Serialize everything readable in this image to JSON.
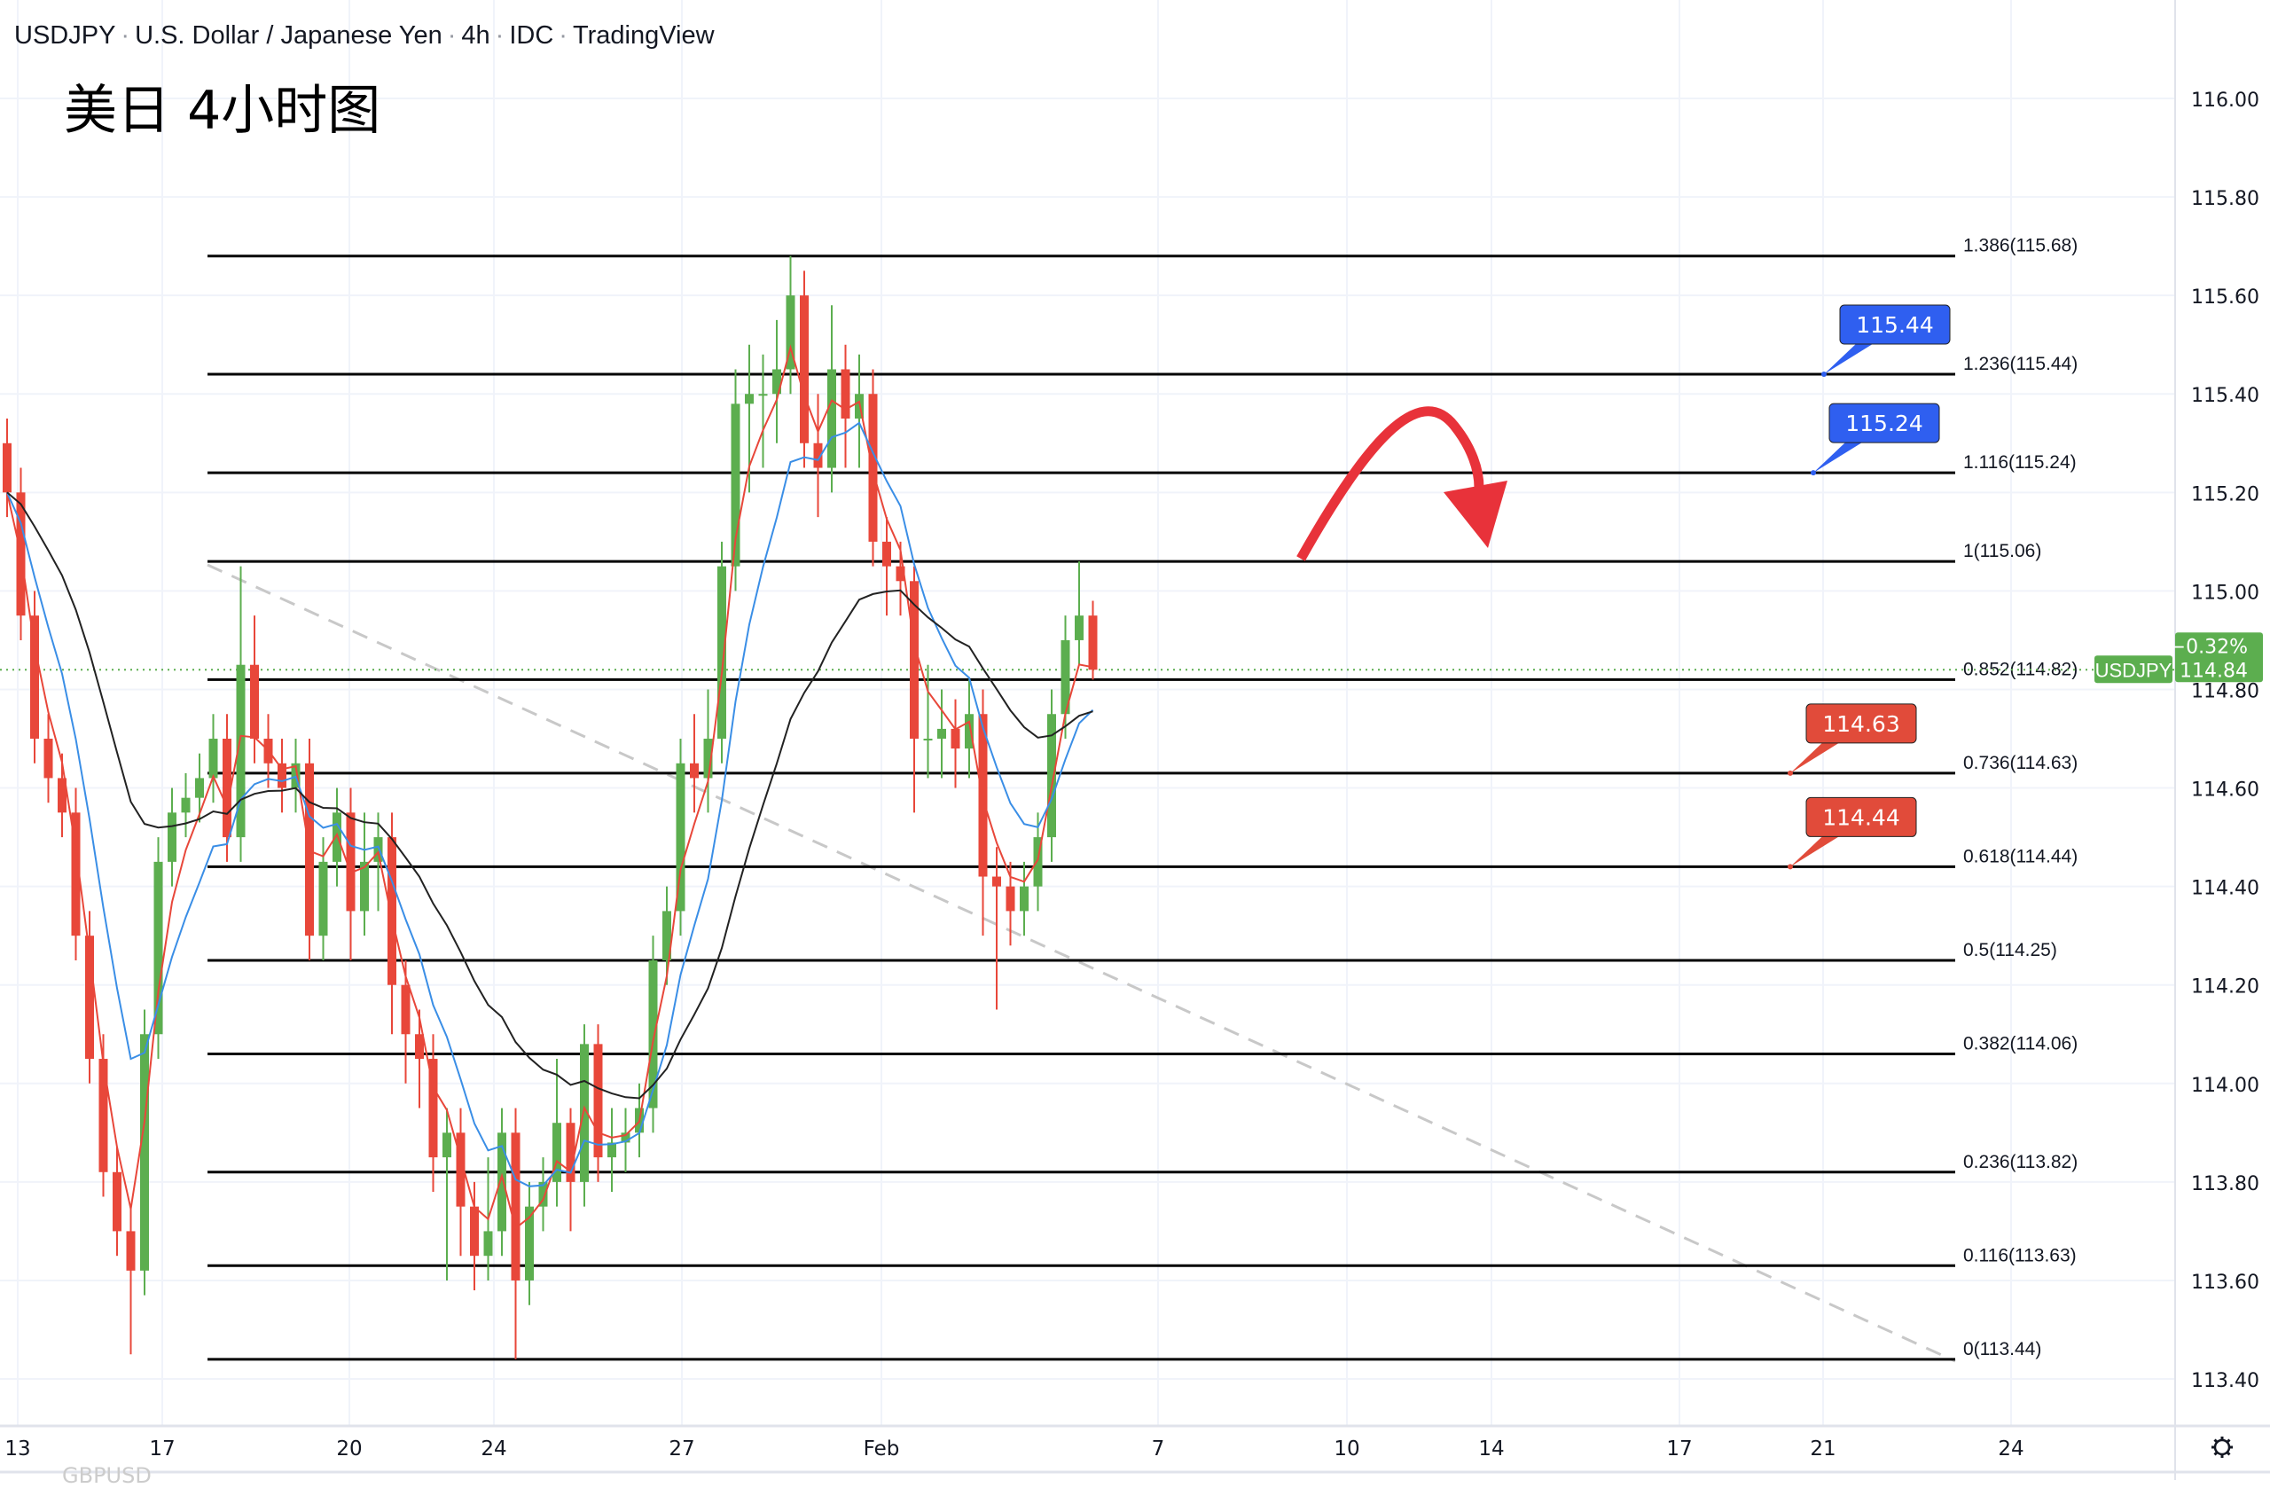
{
  "header": {
    "symbol": "USDJPY",
    "name": "U.S. Dollar / Japanese Yen",
    "interval": "4h",
    "source": "IDC",
    "platform": "TradingView",
    "annotation": "美日 4小时图"
  },
  "watermark": "GBPUSD",
  "colors": {
    "up": "#5cae4f",
    "down": "#e8473a",
    "ma_fast": "#e8473a",
    "ma_mid": "#3a8ee6",
    "ma_slow": "#222222",
    "callout_blue": "#2f5ff0",
    "callout_red": "#e14b3a",
    "last_price": "#5cae4f",
    "arrow": "#e8323a",
    "trendline": "#c8c8c8"
  },
  "chart_data": {
    "type": "candlestick",
    "title": "USDJPY · U.S. Dollar / Japanese Yen · 4h · IDC · TradingView",
    "ylim": [
      113.3,
      116.1
    ],
    "y_ticks": [
      "116.00",
      "115.80",
      "115.60",
      "115.40",
      "115.20",
      "115.00",
      "114.80",
      "114.60",
      "114.40",
      "114.20",
      "114.00",
      "113.80",
      "113.60",
      "113.40"
    ],
    "x_ticks": [
      "13",
      "17",
      "20",
      "24",
      "27",
      "Feb",
      "7",
      "10",
      "14",
      "17",
      "21",
      "24"
    ],
    "grid": true,
    "ohlc": [
      [
        115.3,
        115.35,
        115.15,
        115.2
      ],
      [
        115.2,
        115.25,
        114.9,
        114.95
      ],
      [
        114.95,
        115.0,
        114.65,
        114.7
      ],
      [
        114.7,
        114.75,
        114.57,
        114.62
      ],
      [
        114.62,
        114.67,
        114.5,
        114.55
      ],
      [
        114.55,
        114.6,
        114.25,
        114.3
      ],
      [
        114.3,
        114.35,
        114.0,
        114.05
      ],
      [
        114.05,
        114.1,
        113.77,
        113.82
      ],
      [
        113.82,
        113.87,
        113.65,
        113.7
      ],
      [
        113.7,
        113.75,
        113.45,
        113.62
      ],
      [
        113.62,
        114.15,
        113.57,
        114.1
      ],
      [
        114.1,
        114.5,
        114.05,
        114.45
      ],
      [
        114.45,
        114.6,
        114.4,
        114.55
      ],
      [
        114.55,
        114.63,
        114.5,
        114.58
      ],
      [
        114.58,
        114.67,
        114.53,
        114.62
      ],
      [
        114.62,
        114.75,
        114.57,
        114.7
      ],
      [
        114.7,
        114.75,
        114.45,
        114.5
      ],
      [
        114.5,
        115.05,
        114.45,
        114.85
      ],
      [
        114.85,
        114.95,
        114.65,
        114.7
      ],
      [
        114.7,
        114.75,
        114.6,
        114.65
      ],
      [
        114.65,
        114.7,
        114.55,
        114.6
      ],
      [
        114.6,
        114.7,
        114.55,
        114.65
      ],
      [
        114.65,
        114.7,
        114.25,
        114.3
      ],
      [
        114.3,
        114.5,
        114.25,
        114.45
      ],
      [
        114.45,
        114.6,
        114.4,
        114.55
      ],
      [
        114.55,
        114.6,
        114.25,
        114.35
      ],
      [
        114.35,
        114.55,
        114.3,
        114.45
      ],
      [
        114.45,
        114.55,
        114.35,
        114.5
      ],
      [
        114.5,
        114.55,
        114.1,
        114.2
      ],
      [
        114.2,
        114.25,
        114.0,
        114.1
      ],
      [
        114.1,
        114.15,
        113.95,
        114.05
      ],
      [
        114.05,
        114.1,
        113.78,
        113.85
      ],
      [
        113.85,
        113.95,
        113.6,
        113.9
      ],
      [
        113.9,
        113.95,
        113.65,
        113.75
      ],
      [
        113.75,
        113.8,
        113.58,
        113.65
      ],
      [
        113.65,
        113.85,
        113.6,
        113.7
      ],
      [
        113.7,
        113.95,
        113.65,
        113.9
      ],
      [
        113.9,
        113.95,
        113.44,
        113.6
      ],
      [
        113.6,
        113.8,
        113.55,
        113.75
      ],
      [
        113.75,
        113.85,
        113.7,
        113.8
      ],
      [
        113.8,
        114.05,
        113.75,
        113.92
      ],
      [
        113.92,
        113.95,
        113.7,
        113.8
      ],
      [
        113.8,
        114.12,
        113.75,
        114.08
      ],
      [
        114.08,
        114.12,
        113.8,
        113.85
      ],
      [
        113.85,
        113.95,
        113.78,
        113.88
      ],
      [
        113.88,
        113.95,
        113.82,
        113.9
      ],
      [
        113.9,
        114.0,
        113.85,
        113.95
      ],
      [
        113.95,
        114.3,
        113.9,
        114.25
      ],
      [
        114.25,
        114.4,
        114.2,
        114.35
      ],
      [
        114.35,
        114.7,
        114.3,
        114.65
      ],
      [
        114.65,
        114.75,
        114.55,
        114.62
      ],
      [
        114.62,
        114.8,
        114.55,
        114.7
      ],
      [
        114.7,
        115.1,
        114.65,
        115.05
      ],
      [
        115.05,
        115.45,
        115.0,
        115.38
      ],
      [
        115.38,
        115.5,
        115.2,
        115.4
      ],
      [
        115.4,
        115.48,
        115.25,
        115.4
      ],
      [
        115.4,
        115.55,
        115.3,
        115.45
      ],
      [
        115.45,
        115.68,
        115.4,
        115.6
      ],
      [
        115.6,
        115.65,
        115.25,
        115.3
      ],
      [
        115.3,
        115.4,
        115.15,
        115.25
      ],
      [
        115.25,
        115.58,
        115.2,
        115.45
      ],
      [
        115.45,
        115.5,
        115.25,
        115.35
      ],
      [
        115.35,
        115.48,
        115.25,
        115.4
      ],
      [
        115.4,
        115.45,
        115.05,
        115.1
      ],
      [
        115.1,
        115.15,
        114.95,
        115.05
      ],
      [
        115.05,
        115.1,
        114.95,
        115.02
      ],
      [
        115.02,
        115.05,
        114.55,
        114.7
      ],
      [
        114.7,
        114.85,
        114.62,
        114.7
      ],
      [
        114.7,
        114.8,
        114.62,
        114.72
      ],
      [
        114.72,
        114.78,
        114.6,
        114.68
      ],
      [
        114.68,
        114.82,
        114.62,
        114.75
      ],
      [
        114.75,
        114.8,
        114.3,
        114.42
      ],
      [
        114.42,
        114.48,
        114.15,
        114.4
      ],
      [
        114.4,
        114.45,
        114.28,
        114.35
      ],
      [
        114.35,
        114.45,
        114.3,
        114.4
      ],
      [
        114.4,
        114.55,
        114.35,
        114.5
      ],
      [
        114.5,
        114.8,
        114.45,
        114.75
      ],
      [
        114.75,
        114.95,
        114.7,
        114.9
      ],
      [
        114.9,
        115.06,
        114.85,
        114.95
      ],
      [
        114.95,
        114.98,
        114.82,
        114.84
      ]
    ],
    "fib_levels": [
      {
        "ratio": "1.386",
        "price": 115.68,
        "label": "1.386(115.68)"
      },
      {
        "ratio": "1.236",
        "price": 115.44,
        "label": "1.236(115.44)"
      },
      {
        "ratio": "1.116",
        "price": 115.24,
        "label": "1.116(115.24)"
      },
      {
        "ratio": "1",
        "price": 115.06,
        "label": "1(115.06)"
      },
      {
        "ratio": "0.852",
        "price": 114.82,
        "label": "0.852(114.82)"
      },
      {
        "ratio": "0.736",
        "price": 114.63,
        "label": "0.736(114.63)"
      },
      {
        "ratio": "0.618",
        "price": 114.44,
        "label": "0.618(114.44)"
      },
      {
        "ratio": "0.5",
        "price": 114.25,
        "label": "0.5(114.25)"
      },
      {
        "ratio": "0.382",
        "price": 114.06,
        "label": "0.382(114.06)"
      },
      {
        "ratio": "0.236",
        "price": 113.82,
        "label": "0.236(113.82)"
      },
      {
        "ratio": "0.116",
        "price": 113.63,
        "label": "0.116(113.63)"
      },
      {
        "ratio": "0",
        "price": 113.44,
        "label": "0(113.44)"
      }
    ],
    "callouts": [
      {
        "text": "115.44",
        "price": 115.44,
        "color": "blue"
      },
      {
        "text": "115.24",
        "price": 115.24,
        "color": "blue"
      },
      {
        "text": "114.63",
        "price": 114.63,
        "color": "red"
      },
      {
        "text": "114.44",
        "price": 114.44,
        "color": "red"
      }
    ],
    "last_price": {
      "symbol": "USDJPY",
      "price": 114.84,
      "price_text": "114.84",
      "change": "−0.32%"
    }
  },
  "settings_icon": "gear-icon"
}
